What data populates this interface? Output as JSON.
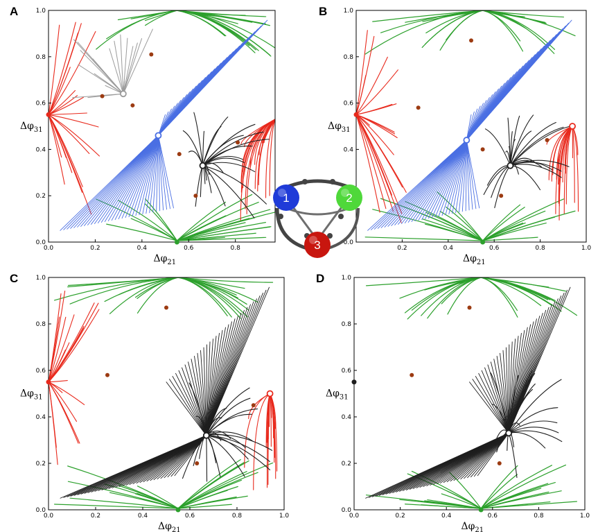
{
  "colors": {
    "red": "#e8291c",
    "green": "#2ca02c",
    "blue": "#4a6fe3",
    "gray": "#9b9b9b",
    "black": "#1e1e1e",
    "saddle": "#9c3b12",
    "node1": "#1f3bd8",
    "node2": "#4fd83a",
    "node3": "#c8160f",
    "link": "#6e6e6e"
  },
  "chart_data": [
    {
      "panel": "A",
      "type": "scatter",
      "xlabel": "Δφ21",
      "ylabel": "Δφ31",
      "xlim": [
        0,
        0.97
      ],
      "ylim": [
        0,
        1.0
      ],
      "xticks": [
        "0.0",
        "0.2",
        "0.4",
        "0.6",
        "0.8"
      ],
      "yticks": [
        "0.0",
        "0.2",
        "0.4",
        "0.6",
        "0.8",
        "1.0"
      ],
      "stable_points": [
        [
          0.47,
          0.46,
          "blue"
        ],
        [
          0.66,
          0.33,
          "black"
        ],
        [
          0.32,
          0.64,
          "gray"
        ],
        [
          0.0,
          0.55,
          "red"
        ],
        [
          0.55,
          0.0,
          "green"
        ]
      ],
      "saddle_points": [
        [
          0.23,
          0.63
        ],
        [
          0.44,
          0.81
        ],
        [
          0.36,
          0.59
        ],
        [
          0.56,
          0.38
        ],
        [
          0.63,
          0.2
        ],
        [
          0.81,
          0.43
        ]
      ],
      "basins": [
        "red",
        "green",
        "blue",
        "gray",
        "black"
      ]
    },
    {
      "panel": "B",
      "type": "scatter",
      "xlabel": "Δφ21",
      "ylabel": "Δφ31",
      "xlim": [
        0,
        1.0
      ],
      "ylim": [
        0,
        1.0
      ],
      "xticks": [
        "0.2",
        "0.4",
        "0.6",
        "0.8",
        "1.0"
      ],
      "yticks": [
        "0.0",
        "0.2",
        "0.4",
        "0.6",
        "0.8",
        "1.0"
      ],
      "stable_points": [
        [
          0.48,
          0.44,
          "blue"
        ],
        [
          0.67,
          0.33,
          "black"
        ],
        [
          0.94,
          0.5,
          "red"
        ],
        [
          0.0,
          0.55,
          "red"
        ],
        [
          0.55,
          0.0,
          "green"
        ]
      ],
      "saddle_points": [
        [
          0.27,
          0.58
        ],
        [
          0.5,
          0.87
        ],
        [
          0.55,
          0.4
        ],
        [
          0.63,
          0.2
        ],
        [
          0.83,
          0.44
        ]
      ],
      "basins": [
        "red",
        "green",
        "blue",
        "black"
      ]
    },
    {
      "panel": "C",
      "type": "scatter",
      "xlabel": "Δφ21",
      "ylabel": "Δφ31",
      "xlim": [
        0,
        1.0
      ],
      "ylim": [
        0,
        1.0
      ],
      "xticks": [
        "0.0",
        "0.2",
        "0.4",
        "0.6",
        "0.8",
        "1.0"
      ],
      "yticks": [
        "0.0",
        "0.2",
        "0.4",
        "0.6",
        "0.8",
        "1.0"
      ],
      "stable_points": [
        [
          0.67,
          0.32,
          "black"
        ],
        [
          0.94,
          0.5,
          "red"
        ],
        [
          0.0,
          0.55,
          "red"
        ],
        [
          0.55,
          0.0,
          "green"
        ]
      ],
      "saddle_points": [
        [
          0.25,
          0.58
        ],
        [
          0.5,
          0.87
        ],
        [
          0.63,
          0.2
        ],
        [
          0.87,
          0.45
        ]
      ],
      "basins": [
        "red",
        "green",
        "black"
      ]
    },
    {
      "panel": "D",
      "type": "scatter",
      "xlabel": "Δφ21",
      "ylabel": "Δφ31",
      "xlim": [
        0,
        1.0
      ],
      "ylim": [
        0,
        1.0
      ],
      "xticks": [
        "0.0",
        "0.2",
        "0.4",
        "0.6",
        "0.8",
        "1.0"
      ],
      "yticks": [
        "0.0",
        "0.2",
        "0.4",
        "0.6",
        "0.8",
        "1.0"
      ],
      "stable_points": [
        [
          0.67,
          0.33,
          "black"
        ],
        [
          0.0,
          0.55,
          "black"
        ],
        [
          0.55,
          0.0,
          "green"
        ]
      ],
      "saddle_points": [
        [
          0.25,
          0.58
        ],
        [
          0.5,
          0.87
        ],
        [
          0.63,
          0.2
        ]
      ],
      "basins": [
        "green",
        "black"
      ]
    }
  ],
  "motif": {
    "nodes": [
      "1",
      "2",
      "3"
    ]
  }
}
